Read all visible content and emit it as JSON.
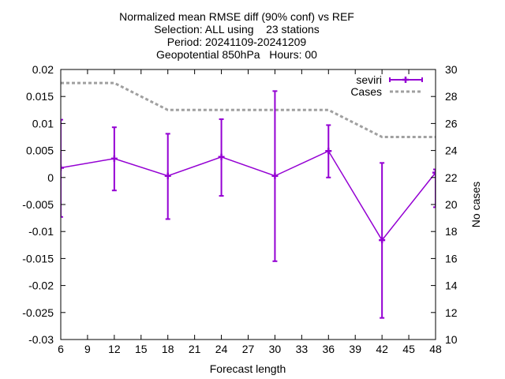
{
  "chart_data": {
    "type": "line",
    "title_lines": [
      "Normalized mean RMSE diff (90% conf) vs REF",
      "Selection: ALL using    23 stations",
      "Period: 20241109-20241209",
      "Geopotential 850hPa   Hours: 00"
    ],
    "xlabel": "Forecast length",
    "ylabel": "",
    "y2label": "No cases",
    "xlim": [
      6,
      48
    ],
    "ylim": [
      -0.03,
      0.02
    ],
    "y2lim": [
      10,
      30
    ],
    "x_ticks": [
      6,
      9,
      12,
      15,
      18,
      21,
      24,
      27,
      30,
      33,
      36,
      39,
      42,
      45,
      48
    ],
    "y_ticks": [
      -0.03,
      -0.025,
      -0.02,
      -0.015,
      -0.01,
      -0.005,
      0,
      0.005,
      0.01,
      0.015,
      0.02
    ],
    "y_tick_labels": [
      "-0.03",
      "-0.025",
      "-0.02",
      "-0.015",
      "-0.01",
      "-0.005",
      "0",
      "0.005",
      "0.01",
      "0.015",
      "0.02"
    ],
    "y2_ticks": [
      10,
      12,
      14,
      16,
      18,
      20,
      22,
      24,
      26,
      28,
      30
    ],
    "grid": false,
    "legend_position": "top-right",
    "series": [
      {
        "name": "seviri",
        "color": "#9400d3",
        "axis": "left",
        "x": [
          6,
          12,
          18,
          24,
          30,
          36,
          42,
          48
        ],
        "y": [
          0.0018,
          0.0035,
          0.0003,
          0.0038,
          0.0003,
          0.0049,
          -0.0116,
          0.0009
        ],
        "err_low": [
          -0.0073,
          -0.0024,
          -0.0077,
          -0.0034,
          -0.0155,
          0.0,
          -0.026,
          -0.0055
        ],
        "err_high": [
          0.0107,
          0.0093,
          0.0081,
          0.0108,
          0.016,
          0.0097,
          0.0027,
          0.0015
        ]
      },
      {
        "name": "Cases",
        "color": "#a0a0a0",
        "axis": "right",
        "style": "dashed",
        "x": [
          6,
          12,
          18,
          24,
          30,
          36,
          42,
          48
        ],
        "y": [
          29,
          29,
          27,
          27,
          27,
          27,
          25,
          25
        ]
      }
    ]
  }
}
